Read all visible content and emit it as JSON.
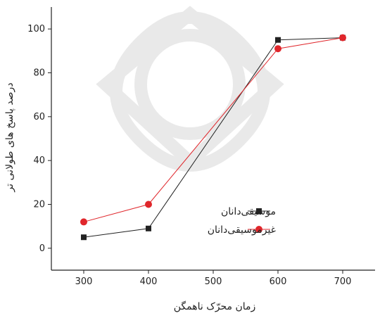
{
  "chart_data": {
    "type": "line",
    "xlabel": "زمان محرّک ناهمگن",
    "ylabel": "درصد پاسخ های طولانی تر",
    "xlim": [
      250,
      750
    ],
    "ylim": [
      -10,
      110
    ],
    "xticks": [
      300,
      400,
      500,
      600,
      700
    ],
    "yticks": [
      0,
      20,
      40,
      60,
      80,
      100
    ],
    "grid": false,
    "legend_position": "lower-right",
    "series": [
      {
        "name": "موسیقی‌دانان",
        "marker": "square",
        "color": "#222222",
        "x": [
          300,
          400,
          600,
          700
        ],
        "y": [
          5,
          9,
          95,
          96
        ]
      },
      {
        "name": "غیرموسیقی‌دانان",
        "marker": "circle",
        "color": "#e0262b",
        "x": [
          300,
          400,
          600,
          700
        ],
        "y": [
          12,
          20,
          91,
          96
        ]
      }
    ]
  }
}
